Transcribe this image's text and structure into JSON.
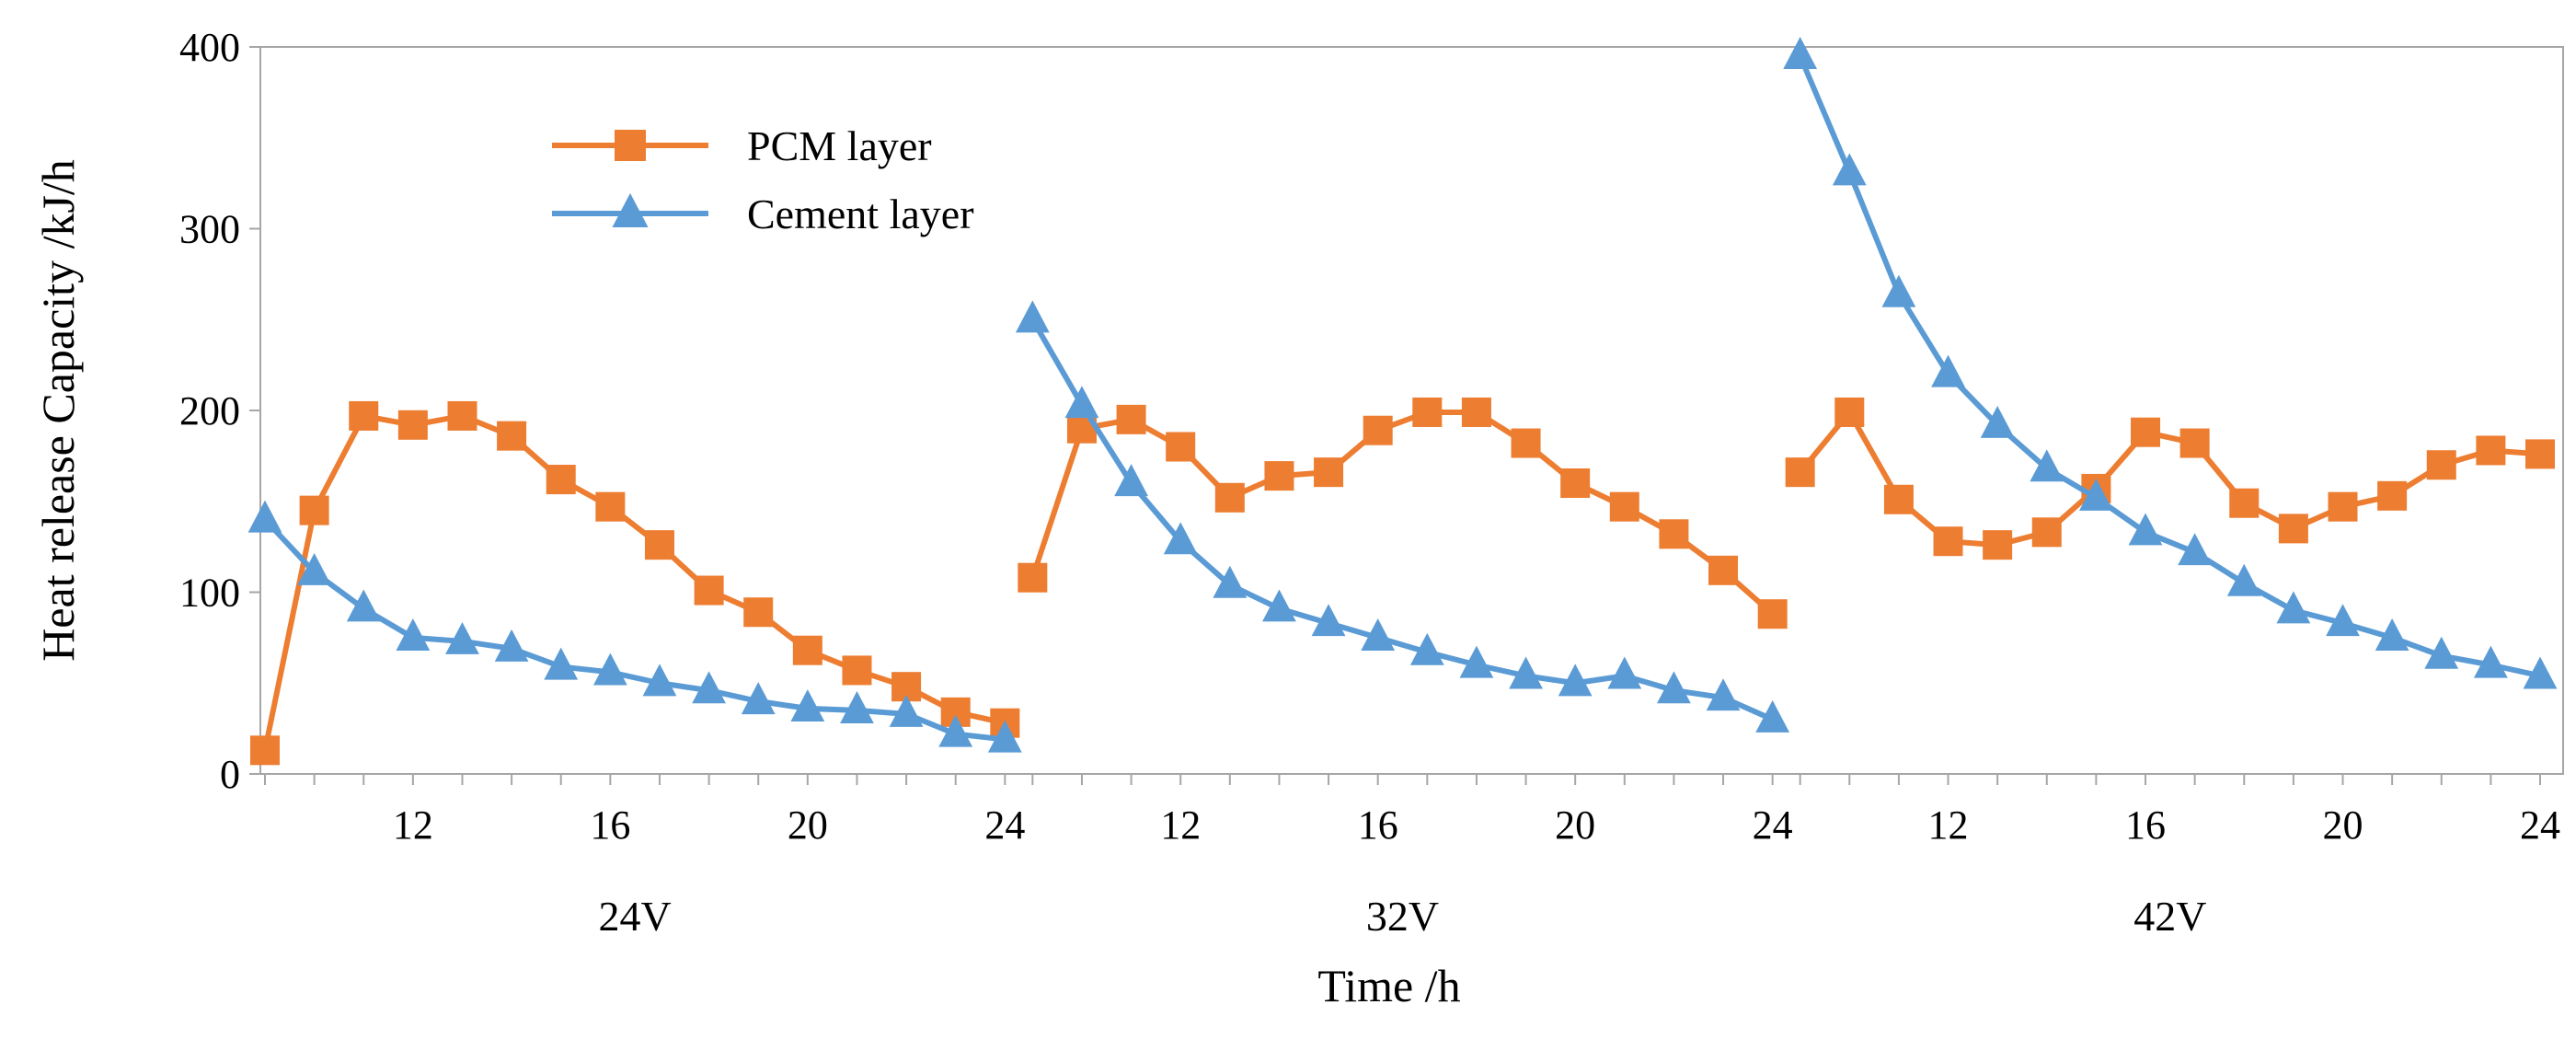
{
  "chart_data": {
    "type": "line",
    "title": "",
    "xlabel": "Time /h",
    "ylabel": "Heat release Capacity /kJ/h",
    "ylim": [
      0,
      400
    ],
    "yticks": [
      0,
      100,
      200,
      300,
      400
    ],
    "grid": false,
    "legend_position": "top-left",
    "x": [
      9,
      10,
      11,
      12,
      13,
      14,
      15,
      16,
      17,
      18,
      19,
      20,
      21,
      22,
      23,
      24
    ],
    "xtick_labels": [
      "12",
      "16",
      "20",
      "24"
    ],
    "groups": [
      "24V",
      "32V",
      "42V"
    ],
    "series": [
      {
        "name": "PCM layer",
        "color": "#ED7D31",
        "marker": "square",
        "values": {
          "24V": [
            13,
            145,
            197,
            192,
            197,
            186,
            162,
            147,
            126,
            101,
            89,
            68,
            57,
            48,
            34,
            28
          ],
          "32V": [
            108,
            190,
            195,
            180,
            152,
            164,
            166,
            189,
            199,
            199,
            182,
            160,
            147,
            132,
            112,
            88
          ],
          "42V": [
            166,
            199,
            151,
            128,
            126,
            133,
            157,
            188,
            182,
            149,
            135,
            147,
            153,
            170,
            178,
            176
          ]
        }
      },
      {
        "name": "Cement layer",
        "color": "#5B9BD5",
        "marker": "triangle",
        "values": {
          "24V": [
            140,
            111,
            91,
            75,
            73,
            69,
            59,
            56,
            50,
            46,
            40,
            36,
            35,
            33,
            22,
            19
          ],
          "32V": [
            250,
            203,
            160,
            128,
            104,
            91,
            83,
            75,
            67,
            60,
            54,
            50,
            54,
            46,
            42,
            30
          ],
          "42V": [
            395,
            331,
            264,
            220,
            192,
            168,
            152,
            133,
            122,
            105,
            90,
            83,
            75,
            65,
            60,
            54
          ]
        }
      }
    ]
  }
}
